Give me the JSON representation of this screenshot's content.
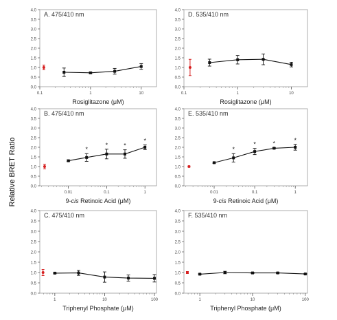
{
  "y_axis_label": "Relative BRET Ratio",
  "chart_data": [
    {
      "type": "line",
      "title": "A. 475/410 nm",
      "xlabel": "Rosiglitazone (μM)",
      "ylabel": "Relative BRET Ratio",
      "xscale": "log",
      "xlim": [
        0.1,
        20
      ],
      "ylim": [
        0,
        4
      ],
      "yticks": [
        "0.0",
        "0.5",
        "1.0",
        "1.5",
        "2.0",
        "2.5",
        "3.0",
        "3.5",
        "4.0"
      ],
      "xticks": [
        {
          "value": 0.1,
          "label": "0.1"
        },
        {
          "value": 1,
          "label": "1"
        },
        {
          "value": 10,
          "label": "10"
        }
      ],
      "control": {
        "x": 0.12,
        "y": 1.0,
        "err": 0.12,
        "color": "#d62020"
      },
      "series": [
        {
          "x": [
            0.3,
            1,
            3,
            10
          ],
          "y": [
            0.75,
            0.72,
            0.8,
            1.05
          ],
          "err": [
            0.22,
            0.04,
            0.15,
            0.15
          ],
          "sig": [
            false,
            false,
            false,
            false
          ]
        }
      ]
    },
    {
      "type": "line",
      "title": "D. 535/410 nm",
      "xlabel": "Rosiglitazone (μM)",
      "ylabel": "Relative BRET Ratio",
      "xscale": "log",
      "xlim": [
        0.1,
        20
      ],
      "ylim": [
        0,
        4
      ],
      "yticks": [
        "0.0",
        "0.5",
        "1.0",
        "1.5",
        "2.0",
        "2.5",
        "3.0",
        "3.5",
        "4.0"
      ],
      "xticks": [
        {
          "value": 0.1,
          "label": "0.1"
        },
        {
          "value": 1,
          "label": "1"
        },
        {
          "value": 10,
          "label": "10"
        }
      ],
      "control": {
        "x": 0.13,
        "y": 1.0,
        "err": 0.42,
        "color": "#d62020"
      },
      "series": [
        {
          "x": [
            0.3,
            1,
            3,
            10
          ],
          "y": [
            1.25,
            1.4,
            1.42,
            1.15
          ],
          "err": [
            0.18,
            0.22,
            0.28,
            0.12
          ],
          "sig": [
            false,
            false,
            false,
            false
          ]
        }
      ]
    },
    {
      "type": "line",
      "title": "B. 475/410 nm",
      "xlabel_parts": [
        "9-",
        "cis",
        " Retinoic Acid (μM)"
      ],
      "ylabel": "Relative BRET Ratio",
      "xscale": "log",
      "xlim": [
        0.0018,
        2
      ],
      "ylim": [
        0,
        4
      ],
      "yticks": [
        "0.0",
        "0.5",
        "1.0",
        "1.5",
        "2.0",
        "2.5",
        "3.0",
        "3.5",
        "4.0"
      ],
      "xticks": [
        {
          "value": 0.01,
          "label": "0.01"
        },
        {
          "value": 0.1,
          "label": "0.1"
        },
        {
          "value": 1,
          "label": "1"
        }
      ],
      "control": {
        "x": 0.0024,
        "y": 1.0,
        "err": 0.12,
        "color": "#d62020"
      },
      "series": [
        {
          "x": [
            0.01,
            0.03,
            0.1,
            0.3,
            1
          ],
          "y": [
            1.3,
            1.47,
            1.65,
            1.65,
            2.0
          ],
          "err": [
            0.04,
            0.2,
            0.25,
            0.22,
            0.12
          ],
          "sig": [
            false,
            true,
            true,
            true,
            true
          ]
        }
      ]
    },
    {
      "type": "line",
      "title": "E. 535/410 nm",
      "xlabel_parts": [
        "9-",
        "cis",
        " Retinoic Acid (μM)"
      ],
      "ylabel": "Relative BRET Ratio",
      "xscale": "log",
      "xlim": [
        0.0018,
        2
      ],
      "ylim": [
        0,
        4
      ],
      "yticks": [
        "0.0",
        "0.5",
        "1.0",
        "1.5",
        "2.0",
        "2.5",
        "3.0",
        "3.5",
        "4.0"
      ],
      "xticks": [
        {
          "value": 0.01,
          "label": "0.01"
        },
        {
          "value": 0.1,
          "label": "0.1"
        },
        {
          "value": 1,
          "label": "1"
        }
      ],
      "control": {
        "x": 0.0024,
        "y": 1.0,
        "err": 0.03,
        "color": "#d62020"
      },
      "series": [
        {
          "x": [
            0.01,
            0.03,
            0.1,
            0.3,
            1
          ],
          "y": [
            1.2,
            1.45,
            1.78,
            1.95,
            2.0
          ],
          "err": [
            0.03,
            0.22,
            0.16,
            0.03,
            0.15
          ],
          "sig": [
            false,
            true,
            true,
            true,
            true
          ]
        }
      ]
    },
    {
      "type": "line",
      "title": "C. 475/410 nm",
      "xlabel": "Triphenyl Phosphate (μM)",
      "ylabel": "Relative BRET Ratio",
      "xscale": "log",
      "xlim": [
        0.5,
        110
      ],
      "ylim": [
        0,
        4
      ],
      "yticks": [
        "0.0",
        "0.5",
        "1.0",
        "1.5",
        "2.0",
        "2.5",
        "3.0",
        "3.5",
        "4.0"
      ],
      "xticks": [
        {
          "value": 1,
          "label": "1"
        },
        {
          "value": 10,
          "label": "10"
        },
        {
          "value": 100,
          "label": "100"
        }
      ],
      "control": {
        "x": 0.58,
        "y": 1.0,
        "err": 0.15,
        "color": "#d62020"
      },
      "series": [
        {
          "x": [
            1,
            3,
            10,
            30,
            100
          ],
          "y": [
            0.97,
            0.98,
            0.78,
            0.73,
            0.72
          ],
          "err": [
            0.03,
            0.12,
            0.25,
            0.15,
            0.18
          ],
          "sig": [
            false,
            false,
            false,
            false,
            false
          ]
        }
      ]
    },
    {
      "type": "line",
      "title": "F. 535/410 nm",
      "xlabel": "Triphenyl Phosphate (μM)",
      "ylabel": "Relative BRET Ratio",
      "xscale": "log",
      "xlim": [
        0.5,
        110
      ],
      "ylim": [
        0,
        4
      ],
      "yticks": [
        "0.0",
        "0.5",
        "1.0",
        "1.5",
        "2.0",
        "2.5",
        "3.0",
        "3.5",
        "4.0"
      ],
      "xticks": [
        {
          "value": 1,
          "label": "1"
        },
        {
          "value": 10,
          "label": "10"
        },
        {
          "value": 100,
          "label": "100"
        }
      ],
      "control": {
        "x": 0.58,
        "y": 1.0,
        "err": 0.05,
        "color": "#d62020"
      },
      "series": [
        {
          "x": [
            1,
            3,
            10,
            30,
            100
          ],
          "y": [
            0.92,
            1.0,
            0.98,
            0.98,
            0.93
          ],
          "err": [
            0.02,
            0.06,
            0.03,
            0.03,
            0.02
          ],
          "sig": [
            false,
            false,
            false,
            false,
            false
          ]
        }
      ]
    }
  ]
}
